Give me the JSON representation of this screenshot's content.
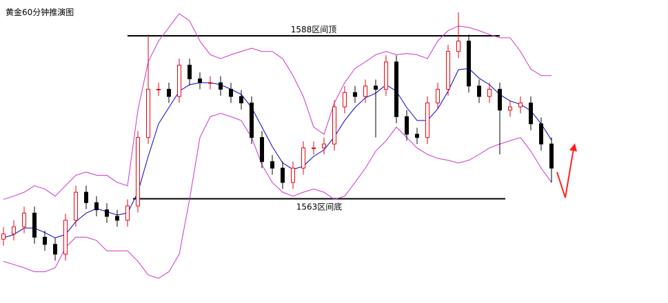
{
  "chart_data": {
    "type": "candlestick",
    "title": "黄金60分钟推演图",
    "ylim": [
      1547,
      1593.5
    ],
    "up_color": "#e8000b",
    "down_color": "#000000",
    "open": [
      1556.8,
      1557.6,
      1558.7,
      1560.8,
      1557.1,
      1556.0,
      1554.5,
      1559.7,
      1564.0,
      1562.4,
      1561.3,
      1560.3,
      1559.7,
      1561.9,
      1572.4,
      1579.8,
      1579.8,
      1578.7,
      1583.5,
      1581.4,
      1580.8,
      1580.8,
      1579.8,
      1578.7,
      1577.7,
      1572.4,
      1568.7,
      1567.7,
      1565.5,
      1567.7,
      1570.8,
      1570.8,
      1571.4,
      1577.1,
      1579.3,
      1578.7,
      1580.3,
      1579.8,
      1584.0,
      1575.6,
      1572.9,
      1572.4,
      1577.7,
      1579.8,
      1585.6,
      1587.2,
      1580.3,
      1578.7,
      1579.8,
      1576.6,
      1577.1,
      1577.7,
      1574.5,
      1571.4
    ],
    "high": [
      1558.6,
      1559.7,
      1561.8,
      1561.8,
      1558.1,
      1557.0,
      1560.7,
      1565.0,
      1565.0,
      1563.4,
      1562.3,
      1561.3,
      1562.9,
      1573.4,
      1588.2,
      1580.8,
      1580.8,
      1584.5,
      1584.5,
      1582.4,
      1581.8,
      1581.8,
      1580.8,
      1579.7,
      1578.7,
      1573.4,
      1569.7,
      1568.7,
      1568.7,
      1571.8,
      1571.8,
      1572.4,
      1578.1,
      1580.3,
      1580.3,
      1581.3,
      1581.3,
      1585.0,
      1585.0,
      1576.6,
      1573.9,
      1578.7,
      1580.8,
      1586.6,
      1591.6,
      1588.2,
      1581.3,
      1580.8,
      1580.8,
      1578.1,
      1578.7,
      1578.7,
      1575.5,
      1572.4
    ],
    "low": [
      1555.8,
      1556.6,
      1557.7,
      1556.1,
      1555.0,
      1553.5,
      1553.5,
      1558.7,
      1561.4,
      1560.3,
      1559.3,
      1558.7,
      1558.7,
      1560.9,
      1571.4,
      1578.8,
      1577.7,
      1577.7,
      1580.4,
      1579.8,
      1579.8,
      1578.8,
      1577.7,
      1576.7,
      1571.4,
      1567.7,
      1566.7,
      1564.5,
      1564.5,
      1566.7,
      1569.8,
      1569.8,
      1570.4,
      1576.1,
      1577.7,
      1577.7,
      1572.4,
      1578.8,
      1574.6,
      1571.9,
      1571.4,
      1571.4,
      1576.7,
      1578.8,
      1584.6,
      1579.3,
      1577.7,
      1577.7,
      1569.8,
      1575.6,
      1576.1,
      1573.5,
      1570.4,
      1565.5
    ],
    "close": [
      1557.6,
      1558.7,
      1560.8,
      1557.1,
      1556.0,
      1554.5,
      1559.7,
      1564.0,
      1562.4,
      1561.3,
      1560.3,
      1559.7,
      1561.9,
      1572.4,
      1579.8,
      1579.8,
      1578.7,
      1583.5,
      1581.4,
      1580.8,
      1580.8,
      1579.8,
      1578.7,
      1577.7,
      1572.4,
      1568.7,
      1567.7,
      1565.5,
      1567.7,
      1570.8,
      1570.8,
      1571.4,
      1577.1,
      1579.3,
      1578.7,
      1580.3,
      1579.8,
      1584.0,
      1575.6,
      1572.9,
      1572.4,
      1577.7,
      1579.8,
      1585.6,
      1587.2,
      1580.3,
      1578.7,
      1579.8,
      1576.6,
      1577.1,
      1577.7,
      1574.5,
      1571.4,
      1567.7
    ],
    "overlays": [
      {
        "color": "#cc33cc",
        "values": [
          1562.9,
          1563.4,
          1564.0,
          1565.0,
          1564.5,
          1563.4,
          1565.0,
          1566.6,
          1567.1,
          1566.6,
          1566.6,
          1565.5,
          1565.0,
          1576.6,
          1584.0,
          1587.2,
          1589.3,
          1591.4,
          1590.3,
          1587.2,
          1585.1,
          1584.5,
          1585.1,
          1585.6,
          1586.1,
          1585.6,
          1585.6,
          1584.5,
          1581.9,
          1578.7,
          1574.0,
          1572.9,
          1577.7,
          1580.8,
          1583.0,
          1584.0,
          1585.1,
          1585.6,
          1585.1,
          1585.3,
          1585.1,
          1584.5,
          1587.2,
          1588.8,
          1589.5,
          1589.3,
          1588.8,
          1588.2,
          1587.7,
          1587.7,
          1585.6,
          1582.9,
          1581.9,
          1581.9
        ]
      },
      {
        "color": "#cc33cc",
        "values": [
          1553.4,
          1552.9,
          1552.4,
          1551.8,
          1551.8,
          1552.4,
          1555.5,
          1557.1,
          1557.1,
          1556.6,
          1555.0,
          1555.0,
          1555.0,
          1553.4,
          1551.3,
          1550.8,
          1551.8,
          1554.5,
          1562.9,
          1572.4,
          1575.6,
          1576.1,
          1575.6,
          1575.0,
          1572.4,
          1568.2,
          1565.5,
          1564.0,
          1563.4,
          1564.0,
          1564.5,
          1564.0,
          1562.9,
          1563.4,
          1565.5,
          1567.7,
          1570.3,
          1571.9,
          1574.0,
          1572.4,
          1570.8,
          1569.8,
          1569.2,
          1568.9,
          1568.5,
          1568.9,
          1569.8,
          1570.8,
          1571.4,
          1571.9,
          1572.4,
          1570.3,
          1567.7,
          1565.5
        ]
      },
      {
        "color": "#0000cc",
        "values": [
          1557.0,
          1557.5,
          1558.5,
          1558.5,
          1557.8,
          1557.0,
          1557.5,
          1559.5,
          1560.8,
          1561.5,
          1561.0,
          1560.5,
          1560.8,
          1564.0,
          1569.5,
          1574.5,
          1577.0,
          1579.5,
          1580.5,
          1580.8,
          1580.8,
          1580.5,
          1579.8,
          1579.0,
          1577.0,
          1574.0,
          1571.0,
          1568.5,
          1567.5,
          1568.0,
          1569.5,
          1570.5,
          1572.5,
          1575.0,
          1577.0,
          1578.5,
          1579.2,
          1580.5,
          1579.5,
          1577.0,
          1575.0,
          1575.0,
          1576.8,
          1579.5,
          1582.8,
          1583.0,
          1581.5,
          1580.5,
          1579.0,
          1578.0,
          1577.5,
          1576.5,
          1574.5,
          1572.0
        ]
      }
    ],
    "annotations": [
      {
        "text": "1588区间顶",
        "value": 1588
      },
      {
        "text": "1563区间底",
        "value": 1563
      }
    ]
  }
}
